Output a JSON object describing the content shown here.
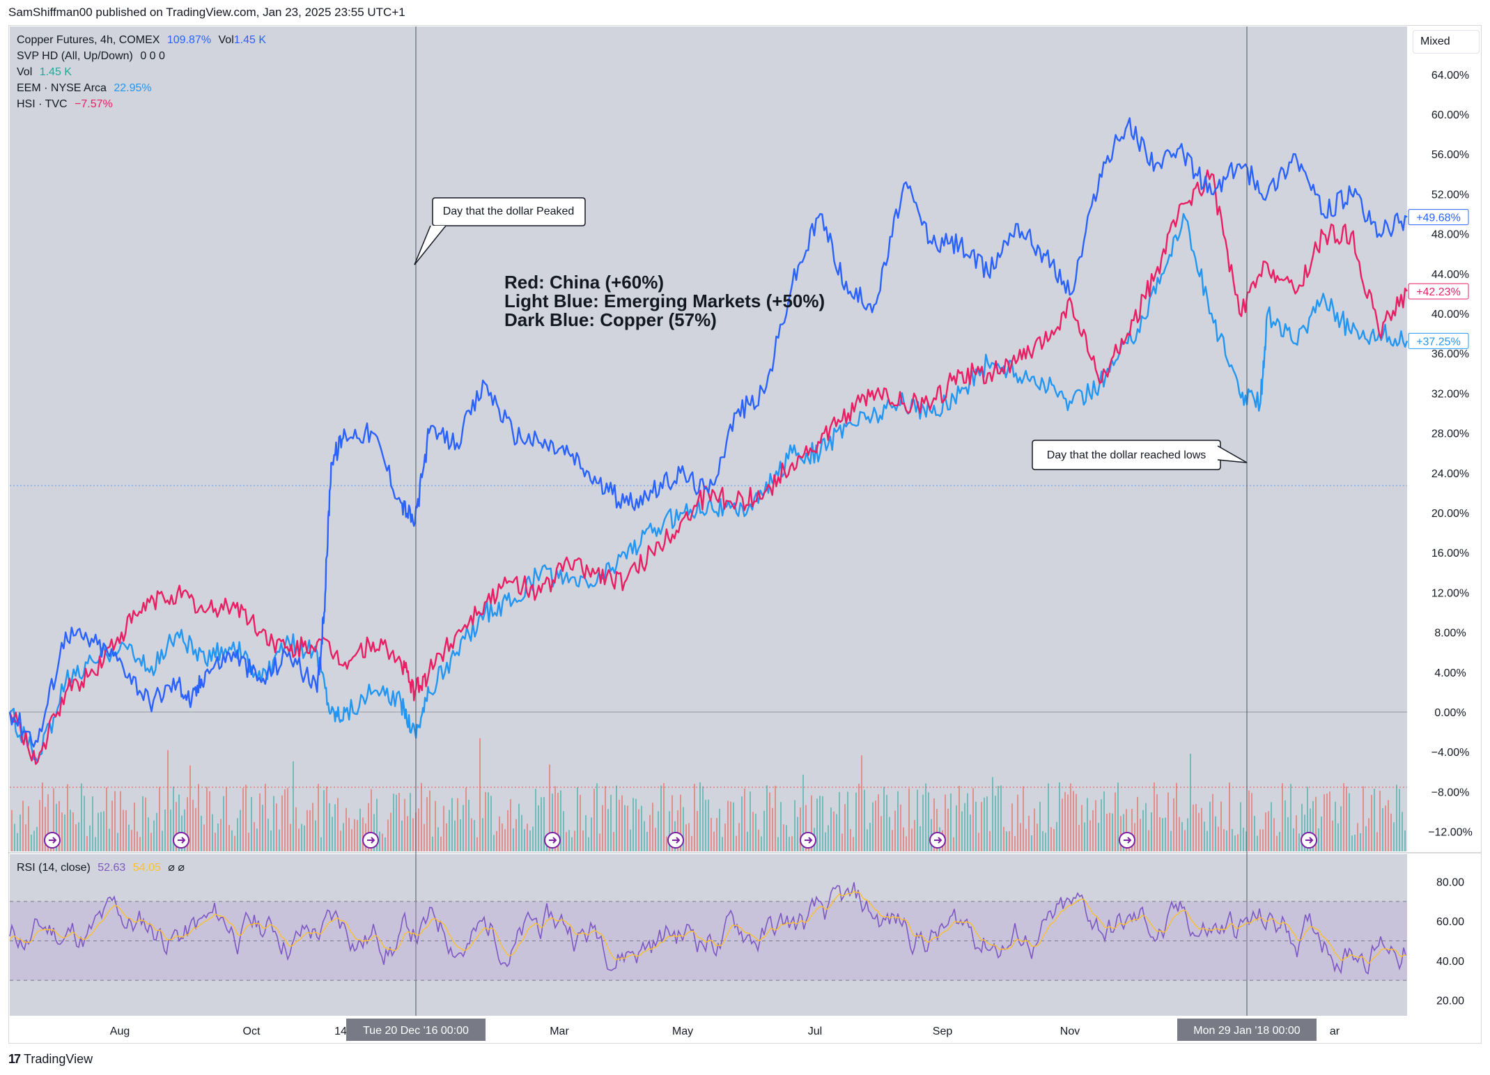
{
  "header": {
    "text": "SamShiffman00 published on TradingView.com, Jan 23, 2025 23:55 UTC+1"
  },
  "legend": [
    {
      "name": "Copper Futures, 4h, COMEX",
      "value": "109.87%",
      "extra": "Vol",
      "extra_value": "1.45 K",
      "color": "#2962ff"
    },
    {
      "name": "SVP HD (All, Up/Down)",
      "value": "0  0  0",
      "color": "#131722"
    },
    {
      "name": "Vol",
      "value": "1.45 K",
      "color": "#26a69a"
    },
    {
      "name": "EEM · NYSE Arca",
      "value": "22.95%",
      "color": "#2196f3"
    },
    {
      "name": "HSI · TVC",
      "value": "−7.57%",
      "color": "#e91e63"
    }
  ],
  "mixed_button": "Mixed",
  "rsi_legend": {
    "name": "RSI (14, close)",
    "value1": "52.63",
    "value2": "54.05",
    "icons": "⌀  ⌀"
  },
  "footer": {
    "logo": "17",
    "name": "TradingView"
  },
  "chart_data": {
    "type": "line",
    "annotations": {
      "text_block": [
        "Red: China (+60%)",
        "Light Blue: Emerging Markets (+50%)",
        "Dark Blue: Copper (57%)"
      ],
      "callout_peak": "Day that the dollar Peaked",
      "callout_lows": "Day that the dollar reached lows"
    },
    "x_labels": [
      "Aug",
      "Oct",
      "14",
      "Mar",
      "May",
      "Jul",
      "Sep",
      "Nov",
      "ar"
    ],
    "x_crosshair_labels": [
      "Tue 20 Dec '16   00:00",
      "Mon 29 Jan '18   00:00"
    ],
    "y_ticks": [
      "64.00%",
      "60.00%",
      "56.00%",
      "52.00%",
      "48.00%",
      "44.00%",
      "40.00%",
      "36.00%",
      "32.00%",
      "28.00%",
      "24.00%",
      "20.00%",
      "16.00%",
      "12.00%",
      "8.00%",
      "4.00%",
      "0.00%",
      "−4.00%",
      "−8.00%",
      "−12.00%"
    ],
    "y_tick_values": [
      64,
      60,
      56,
      52,
      48,
      44,
      40,
      36,
      32,
      28,
      24,
      20,
      16,
      12,
      8,
      4,
      0,
      -4,
      -8,
      -12
    ],
    "ylim": [
      -12.5,
      66
    ],
    "price_labels": [
      {
        "text": "+49.68%",
        "value": 49.68,
        "color": "#2962ff"
      },
      {
        "text": "+42.23%",
        "value": 42.23,
        "color": "#e91e63"
      },
      {
        "text": "+37.25%",
        "value": 37.25,
        "color": "#2196f3"
      }
    ],
    "series": [
      {
        "name": "Dark Blue: Copper",
        "color": "#2962ff",
        "x": [
          0,
          2,
          4,
          6,
          8,
          10,
          12,
          13,
          14,
          16,
          18,
          20,
          22,
          22.5,
          23,
          24,
          26,
          28,
          29,
          30,
          32,
          34,
          36,
          38,
          40,
          42,
          44,
          46,
          48,
          50,
          52,
          54,
          56,
          58,
          60,
          62,
          64,
          66,
          68,
          70,
          72,
          74,
          76,
          78,
          80,
          82,
          84,
          86,
          88,
          90,
          92,
          94,
          96,
          98,
          100
        ],
        "values": [
          0,
          -3,
          8,
          7,
          5,
          1,
          3,
          1,
          4,
          6,
          3,
          6,
          2,
          10,
          25,
          28,
          28,
          21,
          19,
          28,
          27,
          33,
          28,
          27,
          26,
          23,
          21,
          22,
          24,
          22,
          30,
          32,
          43,
          50,
          42,
          41,
          53,
          47,
          47,
          44,
          49,
          46,
          42,
          54,
          59,
          55,
          56,
          52,
          55,
          52,
          56,
          50,
          52,
          48,
          49.68
        ]
      },
      {
        "name": "Light Blue: Emerging Markets",
        "color": "#2196f3",
        "x": [
          0,
          2,
          4,
          6,
          8,
          10,
          12,
          14,
          16,
          18,
          20,
          22,
          23,
          24,
          26,
          28,
          29,
          30,
          32,
          34,
          36,
          38,
          40,
          42,
          44,
          46,
          48,
          50,
          52,
          54,
          56,
          58,
          60,
          62,
          64,
          66,
          68,
          70,
          72,
          74,
          76,
          78,
          80,
          82,
          84,
          86,
          88,
          89.5,
          90,
          92,
          94,
          96,
          98,
          100
        ],
        "values": [
          0,
          -5,
          3,
          5,
          7,
          4,
          8,
          5,
          7,
          3,
          7,
          6,
          0,
          0,
          2,
          1,
          -2,
          2,
          6,
          10,
          11,
          14,
          13,
          13,
          16,
          18,
          20,
          21,
          20,
          22,
          26,
          26,
          29,
          30,
          31,
          30,
          32,
          35,
          34,
          33,
          31,
          33,
          37,
          42,
          50,
          40,
          32,
          31,
          40,
          37,
          42,
          38,
          38,
          37.25
        ]
      },
      {
        "name": "Red: China",
        "color": "#e91e63",
        "x": [
          0,
          2,
          4,
          6,
          8,
          10,
          12,
          14,
          16,
          18,
          20,
          22,
          24,
          26,
          28,
          29,
          30,
          32,
          34,
          36,
          38,
          40,
          42,
          44,
          46,
          48,
          50,
          52,
          54,
          56,
          58,
          60,
          62,
          64,
          66,
          68,
          70,
          72,
          74,
          76,
          78,
          80,
          82,
          84,
          86,
          88,
          90,
          92,
          94,
          96,
          98,
          100
        ],
        "values": [
          0,
          -5,
          2,
          4,
          8,
          11,
          12,
          10,
          11,
          8,
          6,
          7,
          5,
          7,
          5,
          2,
          4,
          8,
          11,
          13,
          12,
          15,
          14,
          13,
          16,
          19,
          22,
          21,
          22,
          25,
          27,
          30,
          32,
          31,
          31,
          34,
          34,
          35,
          37,
          41,
          33,
          38,
          44,
          51,
          54,
          40,
          45,
          42,
          48,
          48,
          38,
          42.23
        ]
      }
    ],
    "volume": {
      "description": "volume bars green/red",
      "up_color": "#26a69a",
      "down_color": "#ef5350"
    },
    "rsi": {
      "y_ticks": [
        "80.00",
        "60.00",
        "40.00",
        "20.00"
      ],
      "y_tick_values": [
        80,
        60,
        40,
        20
      ],
      "ylim": [
        12,
        94
      ],
      "band": [
        30,
        70
      ],
      "mid": 50,
      "line_color": "#7e57c2",
      "ma_color": "#fbc02d"
    }
  }
}
